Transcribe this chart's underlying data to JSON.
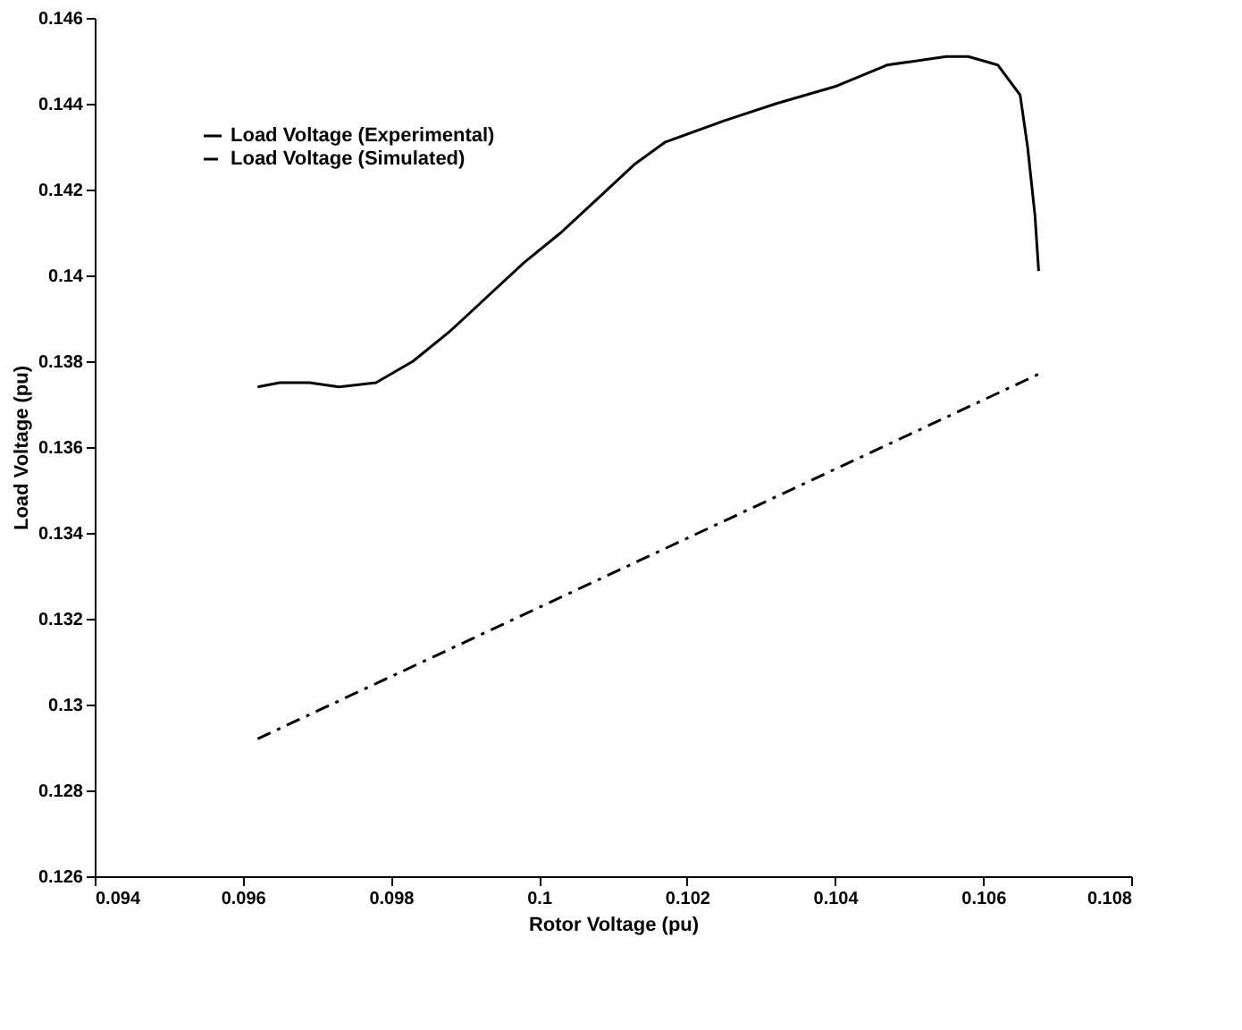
{
  "chart_data": {
    "type": "line",
    "xlabel": "Rotor Voltage (pu)",
    "ylabel": "Load Voltage (pu)",
    "xlim": [
      0.094,
      0.108
    ],
    "xticks": [
      0.094,
      0.096,
      0.098,
      0.1,
      0.102,
      0.104,
      0.106,
      0.108
    ],
    "ylim": [
      0.126,
      0.146
    ],
    "yticks": [
      0.126,
      0.128,
      0.13,
      0.132,
      0.134,
      0.136,
      0.138,
      0.14,
      0.142,
      0.144,
      0.146
    ],
    "grid": false,
    "legend": "top left",
    "series": [
      {
        "name": "Load Voltage (Experimental)",
        "color": "#000000",
        "line_style": "solid",
        "x": [
          0.0962,
          0.0965,
          0.0969,
          0.0973,
          0.0978,
          0.0983,
          0.0988,
          0.0993,
          0.0998,
          0.1003,
          0.1008,
          0.1013,
          0.1017,
          0.1025,
          0.1032,
          0.104,
          0.1047,
          0.1055,
          0.1058,
          0.1062,
          0.1065,
          0.1066,
          0.1067,
          0.10675
        ],
        "values": [
          0.1374,
          0.1375,
          0.1375,
          0.1374,
          0.1375,
          0.138,
          0.1387,
          0.1395,
          0.1403,
          0.141,
          0.1418,
          0.1426,
          0.1431,
          0.1436,
          0.144,
          0.1444,
          0.1449,
          0.1451,
          0.1451,
          0.1449,
          0.1442,
          0.143,
          0.1414,
          0.1401
        ]
      },
      {
        "name": "Load Voltage (Simulated)",
        "color": "#000000",
        "line_style": "dashed",
        "x": [
          0.0962,
          0.10675
        ],
        "values": [
          0.1292,
          0.1377
        ]
      }
    ]
  }
}
